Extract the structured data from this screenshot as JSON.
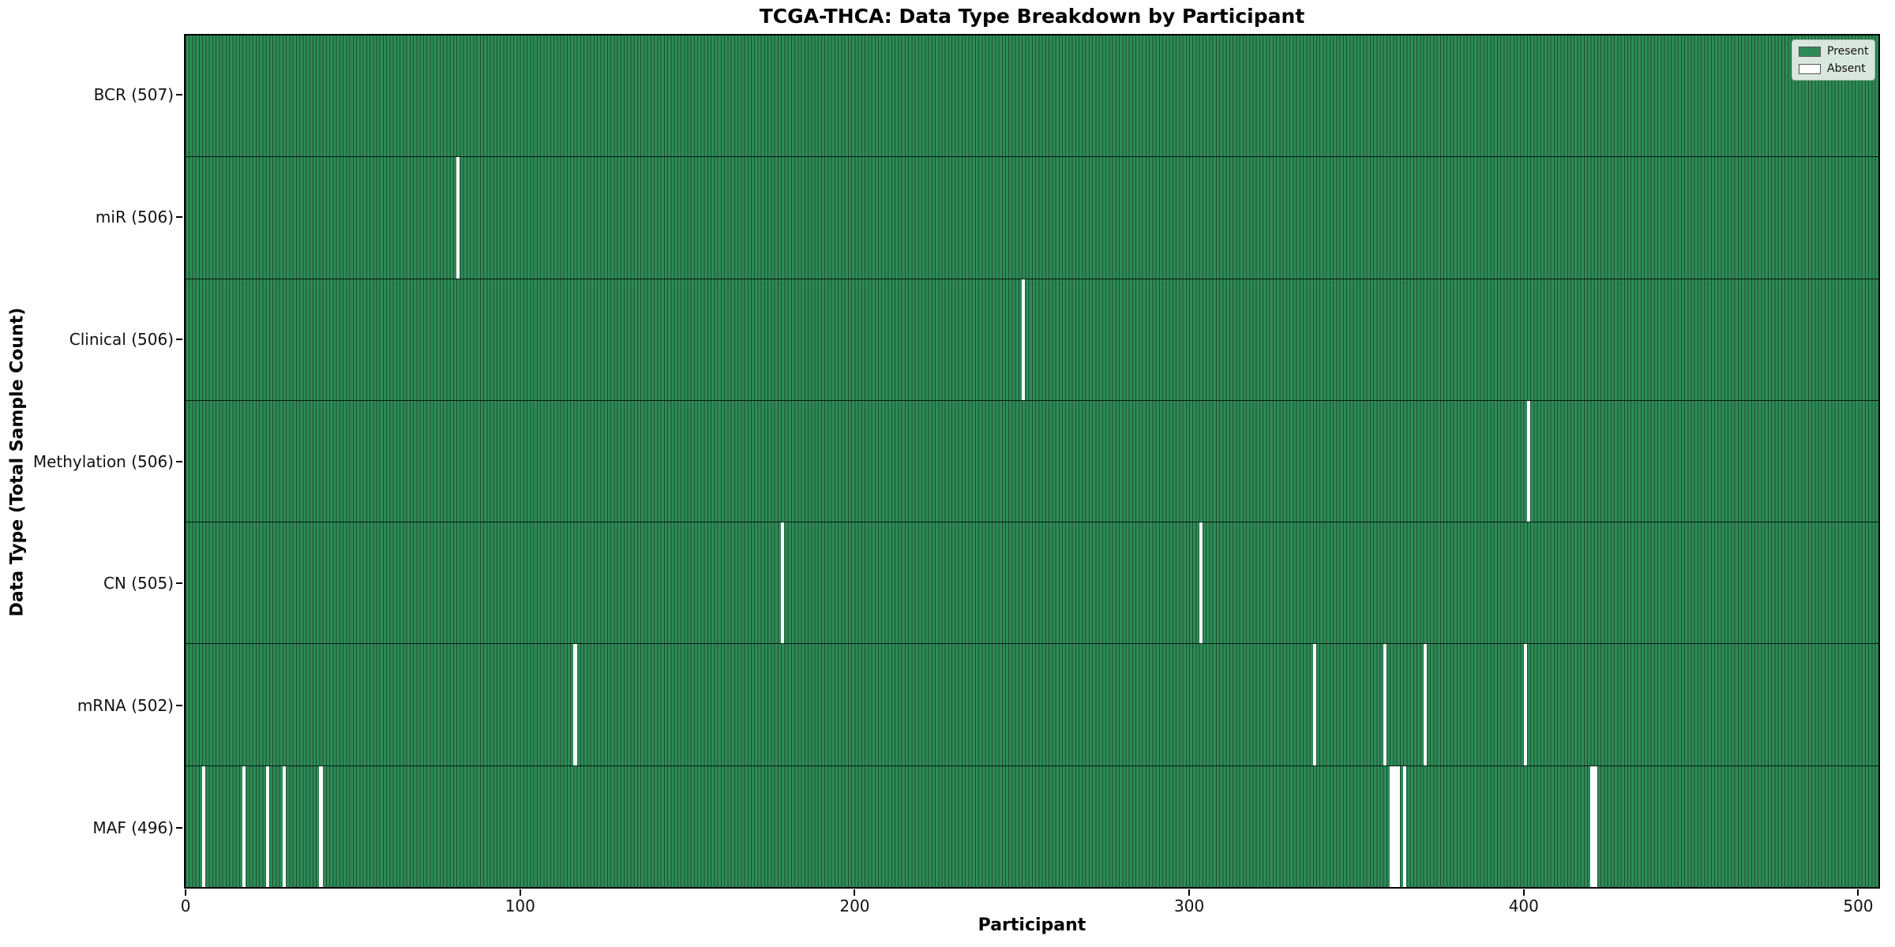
{
  "chart_data": {
    "type": "heatmap",
    "title": "TCGA-THCA: Data Type Breakdown by Participant",
    "xlabel": "Participant",
    "ylabel": "Data Type (Total Sample Count)",
    "x_axis": {
      "min": 0,
      "max": 506,
      "n_participants": 507,
      "ticks": [
        0,
        100,
        200,
        300,
        400,
        500
      ]
    },
    "legend": {
      "present": "Present",
      "absent": "Absent",
      "position": "upper right"
    },
    "colors": {
      "present": "#2e8b57",
      "absent": "#ffffff",
      "bar_edge": "#1c4f33",
      "spine": "#000000"
    },
    "grid": false,
    "rows": [
      {
        "label": "BCR (507)",
        "data_type": "BCR",
        "total": 507,
        "absent_participants": []
      },
      {
        "label": "miR (506)",
        "data_type": "miR",
        "total": 506,
        "absent_participants": [
          81
        ]
      },
      {
        "label": "Clinical (506)",
        "data_type": "Clinical",
        "total": 506,
        "absent_participants": [
          250
        ]
      },
      {
        "label": "Methylation (506)",
        "data_type": "Methylation",
        "total": 506,
        "absent_participants": [
          401
        ]
      },
      {
        "label": "CN (505)",
        "data_type": "CN",
        "total": 505,
        "absent_participants": [
          178,
          303
        ]
      },
      {
        "label": "mRNA (502)",
        "data_type": "mRNA",
        "total": 502,
        "absent_participants": [
          116,
          337,
          358,
          370,
          400
        ]
      },
      {
        "label": "MAF (496)",
        "data_type": "MAF",
        "total": 496,
        "absent_participants": [
          5,
          17,
          24,
          29,
          40,
          360,
          361,
          362,
          364,
          420,
          421
        ]
      }
    ]
  }
}
